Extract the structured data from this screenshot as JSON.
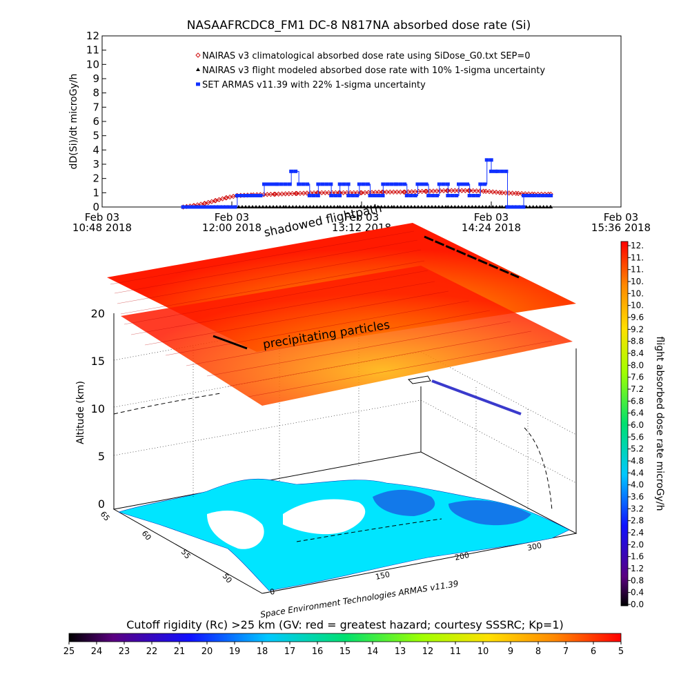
{
  "chart_data": [
    {
      "type": "line",
      "title": "NASAAFRCDC8_FM1 DC-8    N817NA absorbed dose rate (Si)",
      "ylabel": "dD(Si)/dt microGy/h",
      "ylim": [
        0,
        12
      ],
      "yticks": [
        "0",
        "1",
        "2",
        "3",
        "4",
        "5",
        "6",
        "7",
        "8",
        "9",
        "10",
        "11",
        "12"
      ],
      "xlim_hours": [
        10.8,
        15.6
      ],
      "xticks": [
        {
          "hour": 10.8,
          "line1": "Feb 03",
          "line2": "10:48 2018"
        },
        {
          "hour": 12.0,
          "line1": "Feb 03",
          "line2": "12:00 2018"
        },
        {
          "hour": 13.2,
          "line1": "Feb 03",
          "line2": "13:12 2018"
        },
        {
          "hour": 14.4,
          "line1": "Feb 03",
          "line2": "14:24 2018"
        },
        {
          "hour": 15.6,
          "line1": "Feb 03",
          "line2": "15:36 2018"
        }
      ],
      "legend_position": "top-left",
      "series": [
        {
          "name": "NAIRAS v3 climatological absorbed dose rate using SiDose_G0.txt SEP=0",
          "color": "#d01010",
          "marker": "diamond",
          "x": [
            11.55,
            11.65,
            11.75,
            11.85,
            11.95,
            12.05,
            12.2,
            12.4,
            12.6,
            12.8,
            13.0,
            13.2,
            13.4,
            13.6,
            13.8,
            14.0,
            14.2,
            14.35,
            14.5,
            14.65,
            14.8,
            14.95
          ],
          "values": [
            0.0,
            0.1,
            0.25,
            0.45,
            0.65,
            0.8,
            0.85,
            0.9,
            0.95,
            1.0,
            1.0,
            1.0,
            1.05,
            1.05,
            1.1,
            1.15,
            1.15,
            1.1,
            1.0,
            0.95,
            0.9,
            0.9
          ]
        },
        {
          "name": "NAIRAS v3 flight modeled absorbed dose rate with 10% 1-sigma uncertainty",
          "color": "#000000",
          "marker": "triangle",
          "x": [
            11.55,
            12.0,
            12.5,
            13.0,
            13.5,
            14.0,
            14.5,
            14.95
          ],
          "values": [
            0.0,
            0.0,
            0.0,
            0.0,
            0.0,
            0.0,
            0.0,
            0.0
          ]
        },
        {
          "name": "SET ARMAS v11.39 with 22% 1-sigma uncertainty",
          "color": "#1030ff",
          "marker": "square",
          "x": [
            11.55,
            11.95,
            12.05,
            12.15,
            12.3,
            12.42,
            12.55,
            12.62,
            12.72,
            12.8,
            12.92,
            13.0,
            13.08,
            13.18,
            13.28,
            13.4,
            13.52,
            13.62,
            13.72,
            13.82,
            13.92,
            14.0,
            14.1,
            14.2,
            14.3,
            14.36,
            14.4,
            14.46,
            14.55,
            14.62,
            14.7,
            14.8,
            14.95
          ],
          "values": [
            0.0,
            0.0,
            0.8,
            0.8,
            1.6,
            1.6,
            2.5,
            1.6,
            0.8,
            1.6,
            0.8,
            1.6,
            0.8,
            1.6,
            0.8,
            1.6,
            1.6,
            0.8,
            1.6,
            0.8,
            1.6,
            0.8,
            1.6,
            0.8,
            1.6,
            3.3,
            2.5,
            2.5,
            0.0,
            0.0,
            0.8,
            0.8,
            0.8
          ]
        }
      ]
    },
    {
      "type": "heatmap",
      "ylabel": "Altitude (km)",
      "zticks": [
        "0",
        "5",
        "10",
        "15",
        "20"
      ],
      "lat_ticks": [
        "65",
        "60",
        "55",
        "50"
      ],
      "lon_ticks": [
        "0",
        "150",
        "200",
        "300"
      ],
      "annotations": [
        "shadowed flightpath",
        "precipitating particles"
      ],
      "footer": "Space Environment Technologies ARMAS v11.39"
    },
    {
      "type": "heatmap",
      "colorbar": "right",
      "label": "flight absorbed dose rate microGy/h",
      "ticks": [
        "12.",
        "11.",
        "11.",
        "10.",
        "10.",
        "10.",
        "9.6",
        "9.2",
        "8.8",
        "8.4",
        "8.0",
        "7.6",
        "7.2",
        "6.8",
        "6.4",
        "6.0",
        "5.6",
        "5.2",
        "4.8",
        "4.4",
        "4.0",
        "3.6",
        "3.2",
        "2.8",
        "2.4",
        "2.0",
        "1.6",
        "1.2",
        "0.8",
        "0.4",
        "0.0"
      ]
    },
    {
      "type": "heatmap",
      "colorbar": "bottom",
      "label": "Cutoff rigidity (Rc) >25 km (GV: red = greatest hazard; courtesy SSSRC; Kp=1)",
      "ticks": [
        "25",
        "24",
        "23",
        "22",
        "21",
        "20",
        "19",
        "18",
        "17",
        "16",
        "15",
        "14",
        "13",
        "12",
        "11",
        "10",
        "9",
        "8",
        "7",
        "6",
        "5"
      ]
    }
  ]
}
